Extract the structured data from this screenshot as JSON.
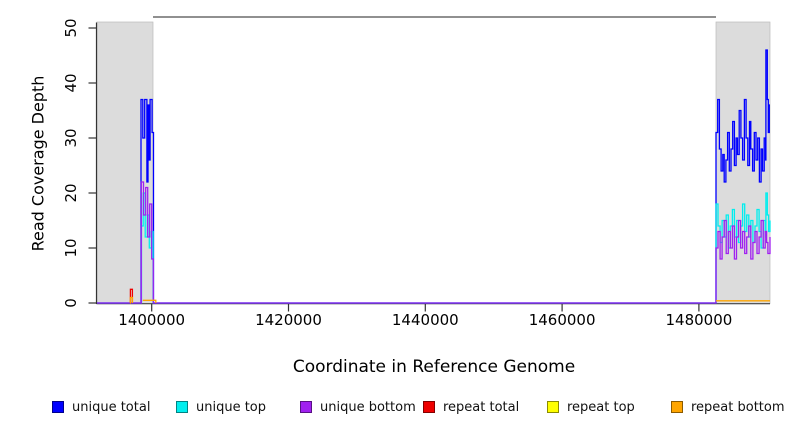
{
  "figure": {
    "x_axis_label": "Coordinate in Reference Genome",
    "y_axis_label": "Read Coverage Depth"
  },
  "legend": {
    "items": [
      {
        "label": "unique total",
        "color": "#0000FF"
      },
      {
        "label": "unique top",
        "color": "#00EEEE"
      },
      {
        "label": "unique bottom",
        "color": "#A020F0"
      },
      {
        "label": "repeat total",
        "color": "#EE0000"
      },
      {
        "label": "repeat top",
        "color": "#FFFF00"
      },
      {
        "label": "repeat bottom",
        "color": "#FFA500"
      }
    ]
  },
  "chart_data": {
    "type": "line",
    "title": "",
    "xlabel": "Coordinate in Reference Genome",
    "ylabel": "Read Coverage Depth",
    "xlim": [
      1392000,
      1490400
    ],
    "ylim": [
      0,
      50
    ],
    "x_ticks": [
      1400000,
      1420000,
      1440000,
      1460000,
      1480000
    ],
    "y_ticks": [
      0,
      10,
      20,
      30,
      40,
      50
    ],
    "grid": false,
    "legend_position": "bottom",
    "band_color": "#DCDCDC",
    "band_edge_color": "#BBBBBB",
    "top_line_color": "#909090",
    "shaded_regions": [
      {
        "name": "repeat-region-left",
        "from": 1392000,
        "to": 1400190
      },
      {
        "name": "repeat-region-right",
        "from": 1482500,
        "to": 1490400
      }
    ],
    "middle_top_line": {
      "from": 1400190,
      "to": 1482500,
      "value": 52
    },
    "series": [
      {
        "name": "unique total",
        "color": "#0000FF",
        "style": "step",
        "segments": [
          [
            [
              1392000,
              0
            ],
            [
              1398430,
              37
            ],
            [
              1398700,
              30
            ],
            [
              1398980,
              37
            ],
            [
              1399290,
              22
            ],
            [
              1399460,
              36
            ],
            [
              1399610,
              26
            ],
            [
              1399760,
              37
            ],
            [
              1400060,
              31
            ],
            [
              1400260,
              0
            ],
            [
              1482500,
              31
            ],
            [
              1482750,
              37
            ],
            [
              1483000,
              28
            ],
            [
              1483250,
              24
            ],
            [
              1483500,
              27
            ],
            [
              1483700,
              22
            ],
            [
              1483950,
              26
            ],
            [
              1484200,
              31
            ],
            [
              1484450,
              24
            ],
            [
              1484700,
              28
            ],
            [
              1484950,
              33
            ],
            [
              1485200,
              25
            ],
            [
              1485450,
              30
            ],
            [
              1485650,
              27
            ],
            [
              1485900,
              35
            ],
            [
              1486150,
              30
            ],
            [
              1486400,
              26
            ],
            [
              1486650,
              37
            ],
            [
              1486900,
              30
            ],
            [
              1487150,
              25
            ],
            [
              1487400,
              33
            ],
            [
              1487600,
              28
            ],
            [
              1487850,
              24
            ],
            [
              1488100,
              31
            ],
            [
              1488350,
              26
            ],
            [
              1488600,
              30
            ],
            [
              1488850,
              22
            ],
            [
              1489100,
              28
            ],
            [
              1489300,
              24
            ],
            [
              1489550,
              30
            ],
            [
              1489750,
              26
            ],
            [
              1489800,
              46
            ],
            [
              1490000,
              37
            ],
            [
              1490150,
              31
            ],
            [
              1490300,
              36
            ],
            [
              1490400,
              36
            ]
          ]
        ]
      },
      {
        "name": "unique top",
        "color": "#00EEEE",
        "style": "step",
        "segments": [
          [
            [
              1392000,
              0
            ],
            [
              1398500,
              14
            ],
            [
              1398750,
              20
            ],
            [
              1399050,
              12
            ],
            [
              1399350,
              16
            ],
            [
              1399650,
              10
            ],
            [
              1399950,
              13
            ],
            [
              1400200,
              0
            ],
            [
              1482500,
              18
            ],
            [
              1482800,
              14
            ],
            [
              1483100,
              11
            ],
            [
              1483400,
              15
            ],
            [
              1483700,
              12
            ],
            [
              1484000,
              16
            ],
            [
              1484300,
              10
            ],
            [
              1484600,
              14
            ],
            [
              1484900,
              17
            ],
            [
              1485200,
              12
            ],
            [
              1485500,
              15
            ],
            [
              1485800,
              11
            ],
            [
              1486100,
              14
            ],
            [
              1486400,
              18
            ],
            [
              1486700,
              13
            ],
            [
              1487000,
              16
            ],
            [
              1487300,
              12
            ],
            [
              1487600,
              15
            ],
            [
              1487900,
              11
            ],
            [
              1488200,
              14
            ],
            [
              1488500,
              17
            ],
            [
              1488800,
              13
            ],
            [
              1489100,
              10
            ],
            [
              1489400,
              15
            ],
            [
              1489700,
              12
            ],
            [
              1489800,
              20
            ],
            [
              1490000,
              16
            ],
            [
              1490200,
              13
            ],
            [
              1490400,
              15
            ]
          ]
        ]
      },
      {
        "name": "unique bottom",
        "color": "#A020F0",
        "style": "step",
        "segments": [
          [
            [
              1392000,
              0
            ],
            [
              1398470,
              22
            ],
            [
              1398800,
              16
            ],
            [
              1399120,
              21
            ],
            [
              1399420,
              12
            ],
            [
              1399700,
              18
            ],
            [
              1400000,
              8
            ],
            [
              1400230,
              0
            ],
            [
              1482500,
              10
            ],
            [
              1482800,
              13
            ],
            [
              1483100,
              8
            ],
            [
              1483400,
              12
            ],
            [
              1483700,
              15
            ],
            [
              1484000,
              9
            ],
            [
              1484300,
              13
            ],
            [
              1484600,
              10
            ],
            [
              1484900,
              14
            ],
            [
              1485200,
              8
            ],
            [
              1485500,
              12
            ],
            [
              1485800,
              15
            ],
            [
              1486100,
              10
            ],
            [
              1486400,
              13
            ],
            [
              1486700,
              9
            ],
            [
              1487000,
              12
            ],
            [
              1487300,
              14
            ],
            [
              1487600,
              8
            ],
            [
              1487900,
              11
            ],
            [
              1488200,
              13
            ],
            [
              1488500,
              9
            ],
            [
              1488800,
              12
            ],
            [
              1489100,
              15
            ],
            [
              1489400,
              10
            ],
            [
              1489700,
              13
            ],
            [
              1489900,
              11
            ],
            [
              1490100,
              9
            ],
            [
              1490400,
              12
            ]
          ]
        ]
      },
      {
        "name": "repeat total",
        "color": "#EE0000",
        "style": "step",
        "segments": [
          [
            [
              1396850,
              0
            ],
            [
              1396880,
              2.5
            ],
            [
              1397180,
              0
            ]
          ]
        ]
      },
      {
        "name": "repeat top",
        "color": "#FFFF00",
        "style": "step",
        "segments": []
      },
      {
        "name": "repeat bottom",
        "color": "#FFA500",
        "style": "step",
        "segments": [
          [
            [
              1396850,
              0
            ],
            [
              1396880,
              1
            ],
            [
              1397180,
              0
            ]
          ],
          [
            [
              1398700,
              0.5
            ],
            [
              1400600,
              0
            ]
          ],
          [
            [
              1482500,
              0.4
            ],
            [
              1490400,
              0.4
            ]
          ]
        ]
      }
    ],
    "baseline_overplot_color": "#8470FF"
  }
}
